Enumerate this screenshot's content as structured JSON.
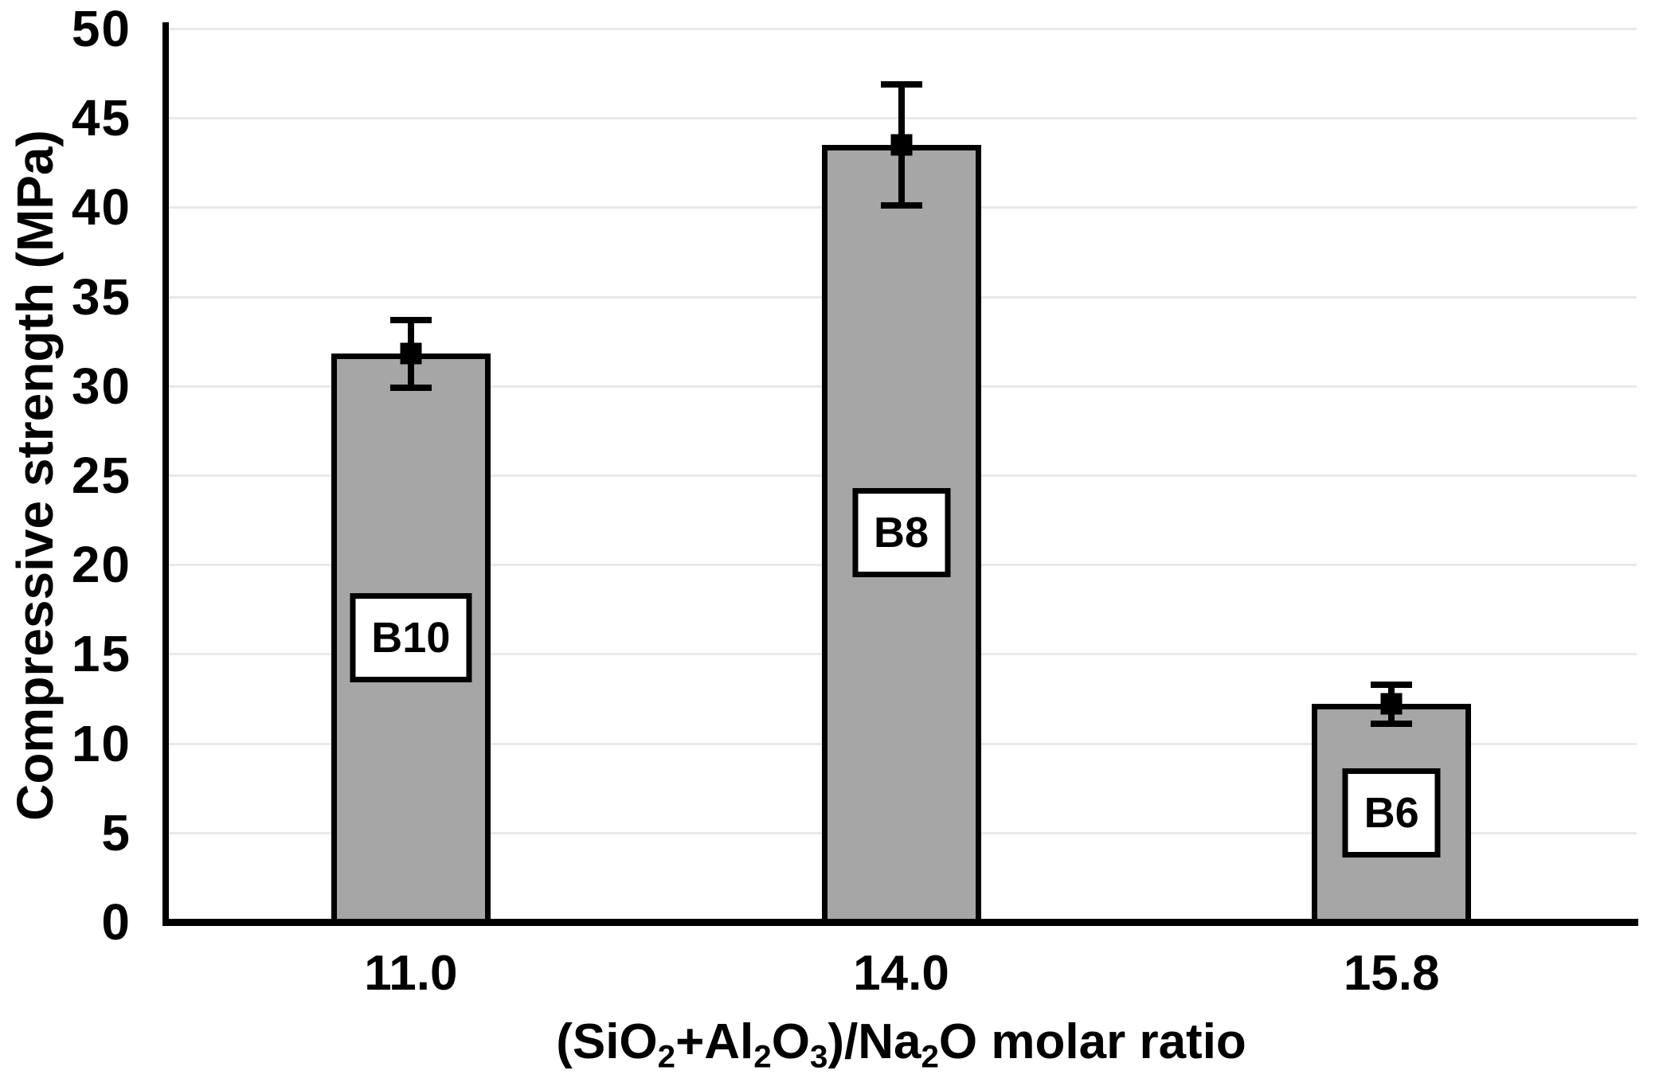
{
  "chart_data": {
    "type": "bar",
    "title": "",
    "ylabel": "Compressive strength (MPa)",
    "xlabel_plain": "(SiO2+Al2O3)/Na2O molar ratio",
    "xlabel_segments": [
      {
        "text": "(SiO"
      },
      {
        "text": "2",
        "sub": true
      },
      {
        "text": "+Al"
      },
      {
        "text": "2",
        "sub": true
      },
      {
        "text": "O"
      },
      {
        "text": "3",
        "sub": true
      },
      {
        "text": ")/Na"
      },
      {
        "text": "2",
        "sub": true
      },
      {
        "text": "O molar ratio"
      }
    ],
    "ylim": [
      0,
      50
    ],
    "yticks": [
      0,
      5,
      10,
      15,
      20,
      25,
      30,
      35,
      40,
      45,
      50
    ],
    "categories": [
      "11.0",
      "14.0",
      "15.8"
    ],
    "grid": "horizontal",
    "legend_position": "none",
    "bars": [
      {
        "category": "11.0",
        "sample_label": "B10",
        "value": 31.8,
        "error_plus": 1.9,
        "error_minus": 1.9,
        "label_box_center": 15.9
      },
      {
        "category": "14.0",
        "sample_label": "B8",
        "value": 43.5,
        "error_plus": 3.4,
        "error_minus": 3.4,
        "label_box_center": 21.8
      },
      {
        "category": "15.8",
        "sample_label": "B6",
        "value": 12.2,
        "error_plus": 1.1,
        "error_minus": 1.1,
        "label_box_center": 6.1
      }
    ],
    "colors": {
      "bar_fill": "#a6a6a6",
      "bar_border": "#000000",
      "gridline": "#e9e9e9",
      "axis": "#000000",
      "text": "#000000",
      "label_box_fill": "#ffffff",
      "background": "#ffffff"
    }
  }
}
